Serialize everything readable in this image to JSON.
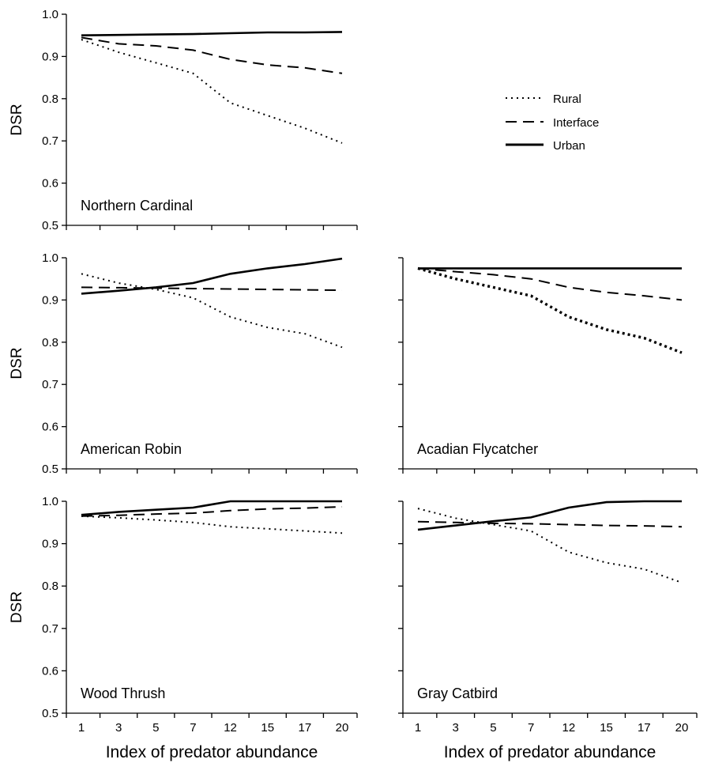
{
  "chart_data": [
    {
      "type": "line",
      "panel_label": "Northern Cardinal",
      "ylabel": "DSR",
      "xlabel": "",
      "categories": [
        "1",
        "3",
        "5",
        "7",
        "12",
        "15",
        "17",
        "20"
      ],
      "ylim": [
        0.5,
        1.0
      ],
      "yticks": [
        "0.5",
        "0.6",
        "0.7",
        "0.8",
        "0.9",
        "1.0"
      ],
      "series": [
        {
          "name": "Rural",
          "style": "dotted",
          "values": [
            0.94,
            0.91,
            0.885,
            0.86,
            0.79,
            0.76,
            0.73,
            0.695
          ]
        },
        {
          "name": "Interface",
          "style": "dashed",
          "values": [
            0.945,
            0.93,
            0.925,
            0.915,
            0.893,
            0.88,
            0.873,
            0.86
          ]
        },
        {
          "name": "Urban",
          "style": "solid",
          "values": [
            0.95,
            0.951,
            0.952,
            0.953,
            0.955,
            0.957,
            0.957,
            0.958
          ]
        }
      ]
    },
    {
      "type": "line",
      "panel_label": "American Robin",
      "ylabel": "DSR",
      "xlabel": "",
      "categories": [
        "1",
        "3",
        "5",
        "7",
        "12",
        "15",
        "17",
        "20"
      ],
      "ylim": [
        0.5,
        1.0
      ],
      "yticks": [
        "0.5",
        "0.6",
        "0.7",
        "0.8",
        "0.9",
        "1.0"
      ],
      "series": [
        {
          "name": "Rural",
          "style": "dotted",
          "values": [
            0.962,
            0.94,
            0.925,
            0.905,
            0.86,
            0.835,
            0.82,
            0.788
          ]
        },
        {
          "name": "Interface",
          "style": "dashed",
          "values": [
            0.93,
            0.929,
            0.928,
            0.927,
            0.926,
            0.925,
            0.924,
            0.923
          ]
        },
        {
          "name": "Urban",
          "style": "solid",
          "values": [
            0.915,
            0.922,
            0.93,
            0.94,
            0.962,
            0.975,
            0.985,
            0.998
          ]
        }
      ]
    },
    {
      "type": "line",
      "panel_label": "Acadian Flycatcher",
      "ylabel": "",
      "xlabel": "",
      "categories": [
        "1",
        "3",
        "5",
        "7",
        "12",
        "15",
        "17",
        "20"
      ],
      "ylim": [
        0.5,
        1.0
      ],
      "yticks": [],
      "series": [
        {
          "name": "Rural",
          "style": "dotted-bold",
          "values": [
            0.975,
            0.95,
            0.93,
            0.91,
            0.86,
            0.83,
            0.81,
            0.775
          ]
        },
        {
          "name": "Interface",
          "style": "dashed",
          "values": [
            0.975,
            0.967,
            0.96,
            0.95,
            0.93,
            0.918,
            0.91,
            0.9
          ]
        },
        {
          "name": "Urban",
          "style": "solid",
          "values": [
            0.975,
            0.975,
            0.975,
            0.975,
            0.975,
            0.975,
            0.975,
            0.975
          ]
        }
      ]
    },
    {
      "type": "line",
      "panel_label": "Wood Thrush",
      "ylabel": "DSR",
      "xlabel": "Index of predator abundance",
      "categories": [
        "1",
        "3",
        "5",
        "7",
        "12",
        "15",
        "17",
        "20"
      ],
      "ylim": [
        0.5,
        1.0
      ],
      "yticks": [
        "0.5",
        "0.6",
        "0.7",
        "0.8",
        "0.9",
        "1.0"
      ],
      "series": [
        {
          "name": "Rural",
          "style": "dotted",
          "values": [
            0.965,
            0.961,
            0.956,
            0.95,
            0.94,
            0.935,
            0.93,
            0.925
          ]
        },
        {
          "name": "Interface",
          "style": "dashed",
          "values": [
            0.965,
            0.967,
            0.97,
            0.972,
            0.978,
            0.982,
            0.984,
            0.987
          ]
        },
        {
          "name": "Urban",
          "style": "solid",
          "values": [
            0.968,
            0.975,
            0.98,
            0.985,
            1.0,
            1.0,
            1.0,
            1.0
          ]
        }
      ]
    },
    {
      "type": "line",
      "panel_label": "Gray Catbird",
      "ylabel": "",
      "xlabel": "Index of predator abundance",
      "categories": [
        "1",
        "3",
        "5",
        "7",
        "12",
        "15",
        "17",
        "20"
      ],
      "ylim": [
        0.5,
        1.0
      ],
      "yticks": [],
      "series": [
        {
          "name": "Rural",
          "style": "dotted",
          "values": [
            0.983,
            0.96,
            0.945,
            0.93,
            0.88,
            0.855,
            0.84,
            0.808
          ]
        },
        {
          "name": "Interface",
          "style": "dashed",
          "values": [
            0.952,
            0.95,
            0.948,
            0.947,
            0.945,
            0.943,
            0.942,
            0.94
          ]
        },
        {
          "name": "Urban",
          "style": "solid",
          "values": [
            0.933,
            0.943,
            0.953,
            0.962,
            0.985,
            0.998,
            1.0,
            1.0
          ]
        }
      ]
    }
  ],
  "legend": {
    "items": [
      {
        "label": "Rural",
        "style": "dotted"
      },
      {
        "label": "Interface",
        "style": "dashed"
      },
      {
        "label": "Urban",
        "style": "solid"
      }
    ]
  }
}
